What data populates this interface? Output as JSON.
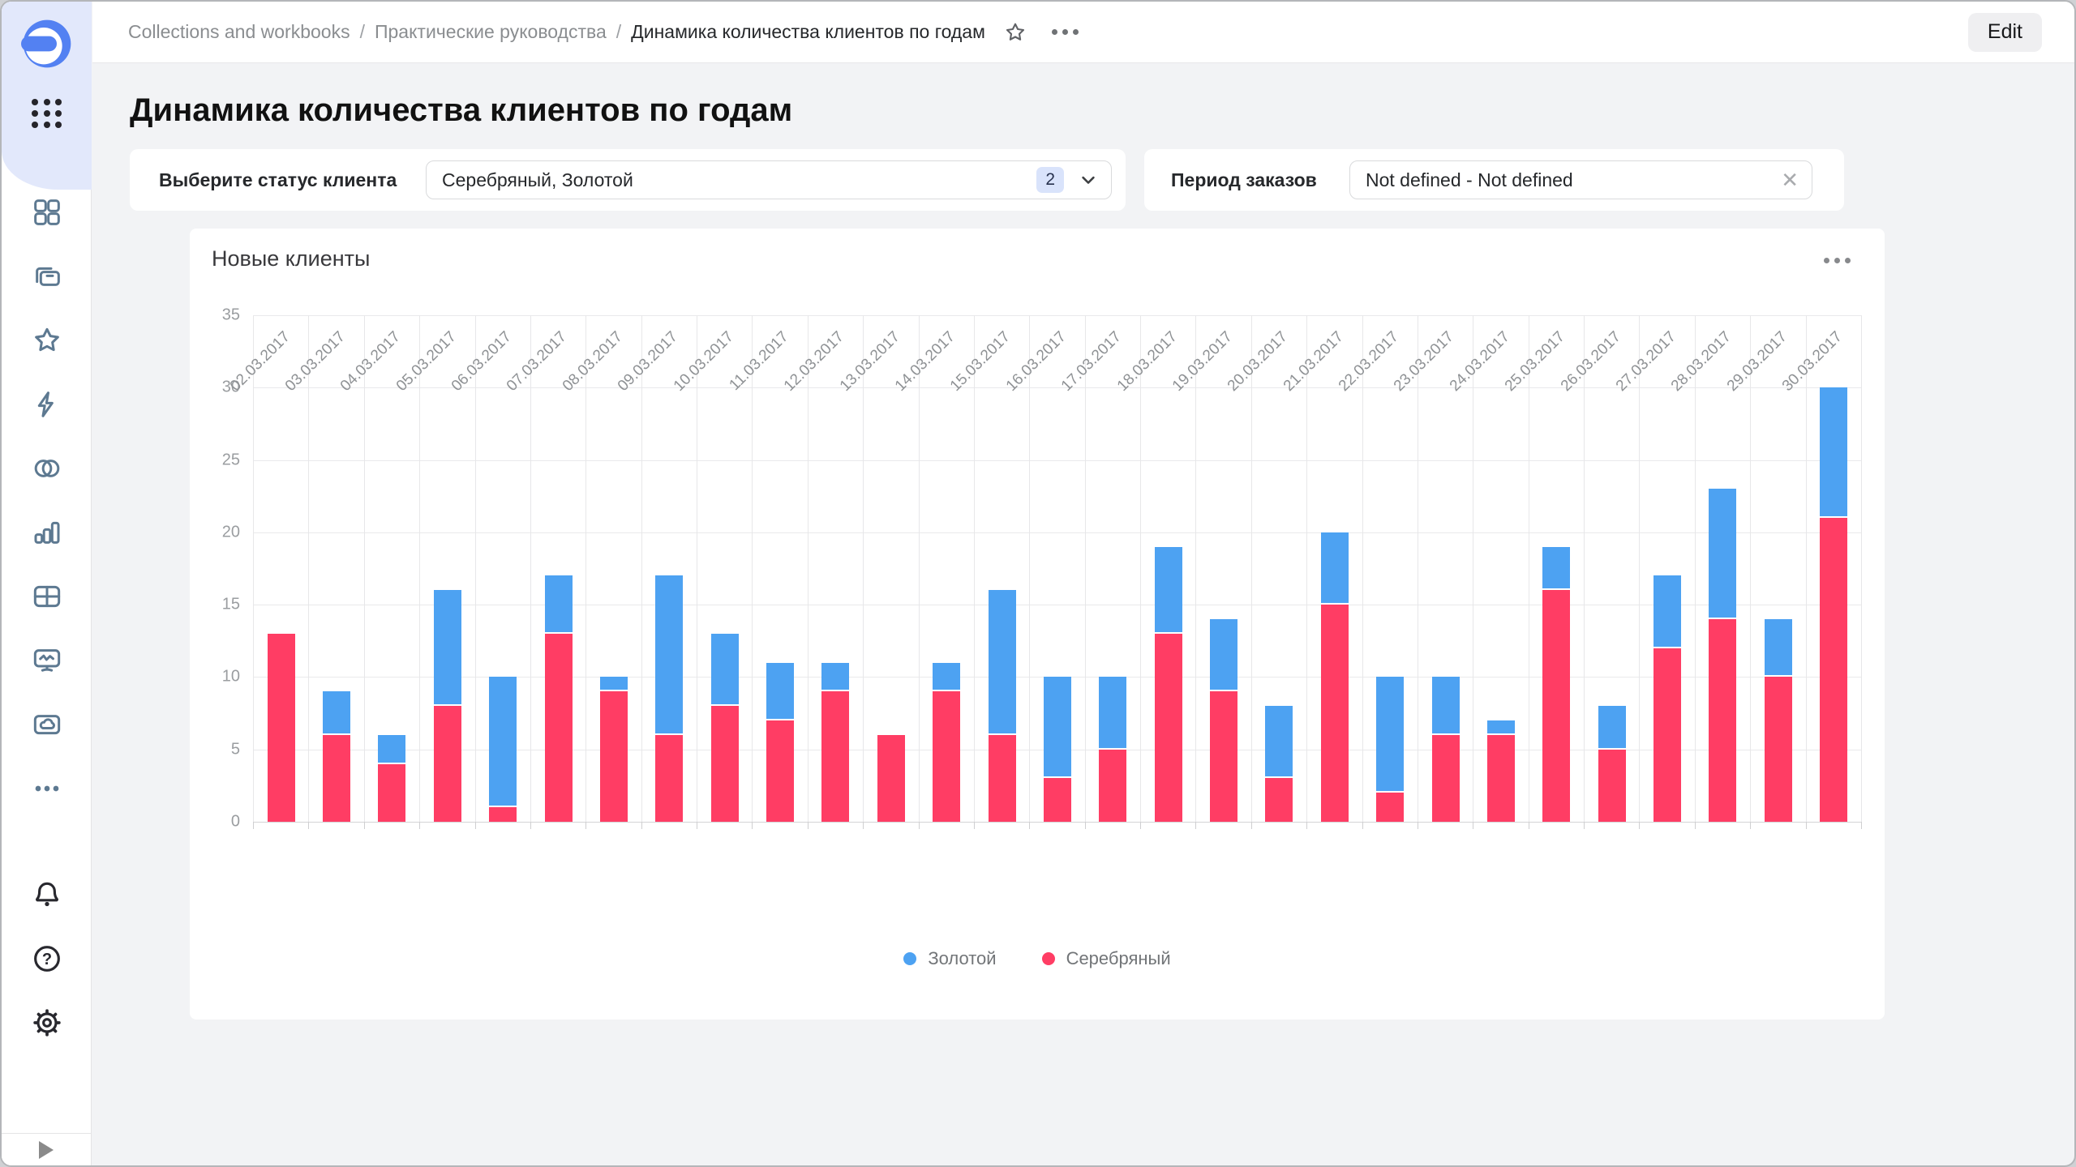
{
  "header": {
    "breadcrumb": [
      "Collections and workbooks",
      "Практические руководства",
      "Динамика количества клиентов по годам"
    ],
    "separator": "/",
    "edit_label": "Edit"
  },
  "page": {
    "title": "Динамика количества клиентов по годам"
  },
  "filters": {
    "status": {
      "label": "Выберите статус клиента",
      "value": "Серебряный, Золотой",
      "count_badge": "2"
    },
    "period": {
      "label": "Период заказов",
      "value": "Not defined - Not defined"
    }
  },
  "sidebar": {
    "logo": "datalens-logo",
    "top_icon": "apps-grid-icon",
    "nav_icons": [
      "squares-icon",
      "collections-icon",
      "star-icon",
      "lightning-icon",
      "overlap-circles-icon",
      "bar-chart-icon",
      "table-icon",
      "monitor-icon",
      "folder-cloud-icon",
      "more-icon"
    ],
    "utility_icons": [
      "bell-icon",
      "help-icon",
      "settings-icon"
    ],
    "footer_icon": "expand-icon"
  },
  "chart_card": {
    "menu_icon": "ellipsis-icon"
  },
  "chart_data": {
    "type": "bar",
    "stacked": true,
    "title": "Новые клиенты",
    "xlabel": "",
    "ylabel": "",
    "ylim": [
      0,
      35
    ],
    "yticks": [
      0,
      5,
      10,
      15,
      20,
      25,
      30,
      35
    ],
    "grid": true,
    "legend_position": "bottom",
    "categories": [
      "02.03.2017",
      "03.03.2017",
      "04.03.2017",
      "05.03.2017",
      "06.03.2017",
      "07.03.2017",
      "08.03.2017",
      "09.03.2017",
      "10.03.2017",
      "11.03.2017",
      "12.03.2017",
      "13.03.2017",
      "14.03.2017",
      "15.03.2017",
      "16.03.2017",
      "17.03.2017",
      "18.03.2017",
      "19.03.2017",
      "20.03.2017",
      "21.03.2017",
      "22.03.2017",
      "23.03.2017",
      "24.03.2017",
      "25.03.2017",
      "26.03.2017",
      "27.03.2017",
      "28.03.2017",
      "29.03.2017",
      "30.03.2017"
    ],
    "series": [
      {
        "name": "Золотой",
        "color": "#4da2f2",
        "values": [
          0,
          3,
          2,
          8,
          9,
          4,
          1,
          11,
          5,
          4,
          2,
          0,
          2,
          10,
          7,
          5,
          6,
          5,
          5,
          5,
          8,
          4,
          1,
          3,
          3,
          5,
          9,
          4,
          9
        ]
      },
      {
        "name": "Серебряный",
        "color": "#ff3d64",
        "values": [
          13,
          6,
          4,
          8,
          1,
          13,
          9,
          6,
          8,
          7,
          9,
          6,
          9,
          6,
          3,
          5,
          13,
          9,
          3,
          15,
          2,
          6,
          6,
          16,
          5,
          12,
          14,
          10,
          21
        ]
      }
    ],
    "stack_bottom_to_top": [
      "Серебряный",
      "Золотой"
    ],
    "legend": [
      "Золотой",
      "Серебряный"
    ]
  },
  "colors": {
    "gold_series": "#4da2f2",
    "silver_series": "#ff3d64",
    "sidebar_icon": "#5d7991",
    "logo_blue": "#5381f2",
    "badge_bg": "#d9e3fb",
    "page_bg": "#f2f3f5"
  }
}
